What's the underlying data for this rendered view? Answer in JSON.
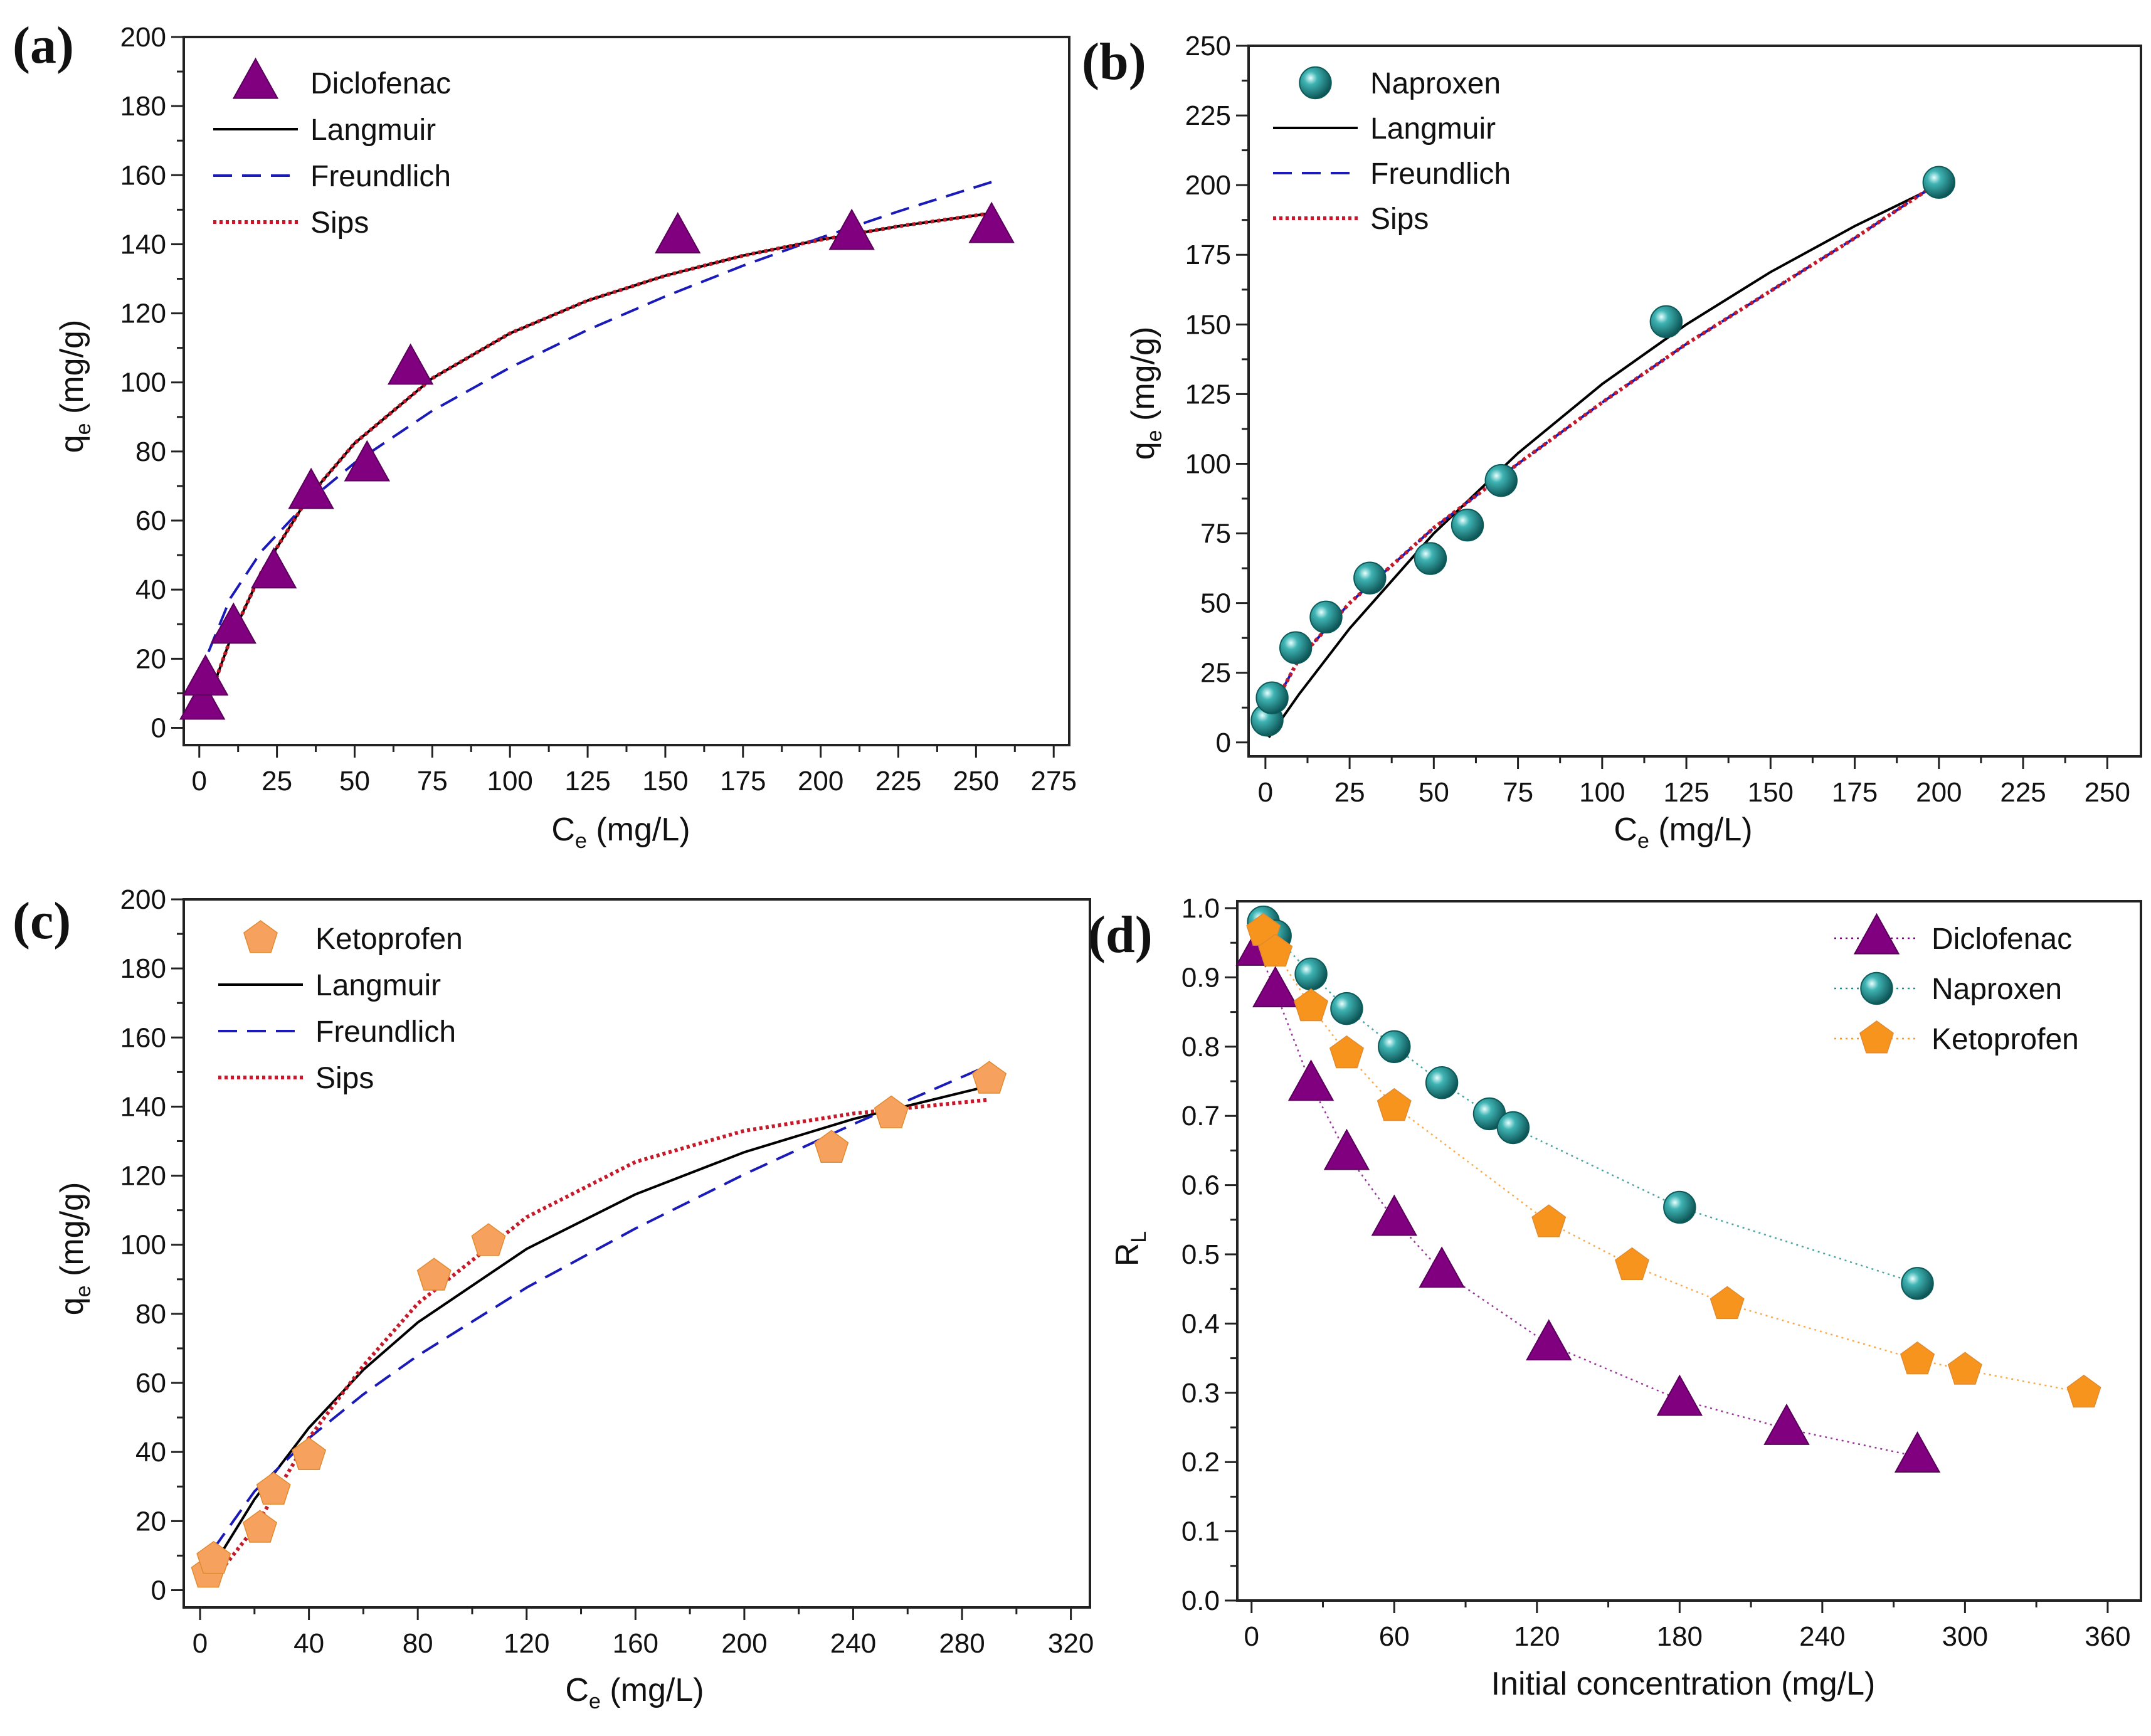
{
  "colors": {
    "diclofenac": "#800080",
    "naproxen": "#1a8c8c",
    "ketoprofen_c": "#f6a25e",
    "ketoprofen_d": "#f7941d",
    "langmuir": "#000000",
    "freundlich": "#1a1ab8",
    "sips": "#c41a2a"
  },
  "chart_data": [
    {
      "panel": "(a)",
      "type": "scatter",
      "xlabel": {
        "base": "C",
        "sub": "e",
        "unit": " (mg/L)"
      },
      "ylabel": {
        "base": "q",
        "sub": "e",
        "unit": " (mg/g)"
      },
      "xlim": [
        -5,
        280
      ],
      "ylim": [
        -5,
        200
      ],
      "xticks": [
        "0",
        "25",
        "50",
        "75",
        "100",
        "125",
        "150",
        "175",
        "200",
        "225",
        "250",
        "275"
      ],
      "yticks": [
        "0",
        "20",
        "40",
        "60",
        "80",
        "100",
        "120",
        "140",
        "160",
        "180",
        "200"
      ],
      "legend": "top-left",
      "series": [
        {
          "name": "Diclofenac",
          "kind": "points",
          "marker": "triangle",
          "color": "#800080",
          "x": [
            1,
            2,
            11,
            24,
            36,
            54,
            68,
            154,
            210,
            255
          ],
          "y": [
            7,
            14,
            29,
            45,
            68,
            76,
            104,
            142,
            143,
            145
          ]
        },
        {
          "name": "Langmuir",
          "kind": "line",
          "style": "solid",
          "color": "#000000",
          "x": [
            2,
            10,
            20,
            35,
            50,
            75,
            100,
            125,
            150,
            175,
            200,
            225,
            255
          ],
          "y": [
            5.8,
            25.6,
            45,
            66.6,
            82.4,
            101.2,
            114.2,
            123.7,
            130.9,
            136.7,
            141.3,
            145.2,
            149
          ]
        },
        {
          "name": "Freundlich",
          "kind": "line",
          "style": "dashed",
          "color": "#1a1ab8",
          "x": [
            3,
            10,
            20,
            35,
            50,
            75,
            100,
            125,
            150,
            175,
            200,
            225,
            255
          ],
          "y": [
            22,
            37.5,
            51.1,
            65.5,
            76.7,
            91.8,
            104.3,
            115.2,
            124.9,
            133.8,
            141.9,
            149.5,
            158
          ]
        },
        {
          "name": "Sips",
          "kind": "line",
          "style": "dotted",
          "color": "#c41a2a",
          "x": [
            2,
            10,
            20,
            35,
            50,
            75,
            100,
            125,
            150,
            175,
            200,
            225,
            255
          ],
          "y": [
            5.8,
            25.6,
            45,
            66.6,
            82.4,
            101.2,
            114.2,
            123.7,
            130.9,
            136.7,
            141.3,
            145.2,
            149
          ]
        }
      ]
    },
    {
      "panel": "(b)",
      "type": "scatter",
      "xlabel": {
        "base": "C",
        "sub": "e",
        "unit": " (mg/L)"
      },
      "ylabel": {
        "base": "q",
        "sub": "e",
        "unit": " (mg/g)"
      },
      "xlim": [
        -5,
        260
      ],
      "ylim": [
        -5,
        250
      ],
      "xticks": [
        "0",
        "25",
        "50",
        "75",
        "100",
        "125",
        "150",
        "175",
        "200",
        "225",
        "250"
      ],
      "yticks": [
        "0",
        "25",
        "50",
        "75",
        "100",
        "125",
        "150",
        "175",
        "200",
        "225",
        "250"
      ],
      "legend": "top-left",
      "series": [
        {
          "name": "Naproxen",
          "kind": "points",
          "marker": "sphere",
          "color": "#1a8c8c",
          "x": [
            0.5,
            2,
            9,
            18,
            31,
            49,
            60,
            70,
            119,
            200
          ],
          "y": [
            8,
            16,
            34,
            45,
            59,
            66,
            78,
            94,
            151,
            201
          ]
        },
        {
          "name": "Langmuir",
          "kind": "line",
          "style": "solid",
          "color": "#000000",
          "x": [
            1,
            10,
            25,
            50,
            75,
            100,
            125,
            150,
            175,
            200
          ],
          "y": [
            1.8,
            17.3,
            40.9,
            75,
            103.8,
            128.6,
            150,
            168.8,
            185.3,
            200
          ]
        },
        {
          "name": "Freundlich",
          "kind": "line",
          "style": "dashed",
          "color": "#1a1ab8",
          "x": [
            1,
            10,
            25,
            50,
            75,
            100,
            125,
            150,
            175,
            200
          ],
          "y": [
            10,
            30,
            50,
            77,
            100,
            122,
            143,
            162,
            181,
            201
          ]
        },
        {
          "name": "Sips",
          "kind": "line",
          "style": "dotted",
          "color": "#c41a2a",
          "x": [
            1,
            10,
            25,
            50,
            75,
            100,
            125,
            150,
            175,
            200
          ],
          "y": [
            10,
            30,
            50,
            77,
            100,
            122,
            143,
            162,
            181,
            201
          ]
        }
      ]
    },
    {
      "panel": "(c)",
      "type": "scatter",
      "xlabel": {
        "base": "C",
        "sub": "e",
        "unit": " (mg/L)"
      },
      "ylabel": {
        "base": "q",
        "sub": "e",
        "unit": " (mg/g)"
      },
      "xlim": [
        -6,
        327
      ],
      "ylim": [
        -5,
        200
      ],
      "xticks": [
        "0",
        "40",
        "80",
        "120",
        "160",
        "200",
        "240",
        "280",
        "320"
      ],
      "yticks": [
        "0",
        "20",
        "40",
        "60",
        "80",
        "100",
        "120",
        "140",
        "160",
        "180",
        "200"
      ],
      "legend": "top-left",
      "series": [
        {
          "name": "Ketoprofen",
          "kind": "points",
          "marker": "pentagon",
          "color": "#f6a25e",
          "x": [
            3,
            5,
            22,
            27,
            40,
            86,
            106,
            232,
            254,
            290
          ],
          "y": [
            5,
            9,
            18,
            29,
            39,
            91,
            101,
            128,
            138,
            148
          ]
        },
        {
          "name": "Langmuir",
          "kind": "line",
          "style": "solid",
          "color": "#000000",
          "x": [
            5,
            20,
            40,
            60,
            80,
            120,
            160,
            200,
            240,
            290
          ],
          "y": [
            7.2,
            26.3,
            47,
            63.8,
            77.5,
            98.8,
            114.6,
            126.8,
            136.4,
            146
          ]
        },
        {
          "name": "Freundlich",
          "kind": "line",
          "style": "dashed",
          "color": "#1a1ab8",
          "x": [
            5,
            20,
            40,
            60,
            80,
            120,
            160,
            200,
            240,
            290
          ],
          "y": [
            12,
            28.6,
            44,
            56.7,
            67.9,
            87.6,
            104.7,
            120.4,
            134.9,
            152
          ]
        },
        {
          "name": "Sips",
          "kind": "line",
          "style": "dotted",
          "color": "#c41a2a",
          "x": [
            5,
            20,
            40,
            60,
            80,
            120,
            160,
            200,
            240,
            290
          ],
          "y": [
            3,
            18,
            44,
            65,
            83,
            108,
            124,
            133,
            138,
            142
          ]
        }
      ]
    },
    {
      "panel": "(d)",
      "type": "scatter",
      "xlabel": {
        "base": "Initial concentration (mg/L)",
        "sub": "",
        "unit": ""
      },
      "ylabel": {
        "base": "R",
        "sub": "L",
        "unit": ""
      },
      "xlim": [
        -6,
        374
      ],
      "ylim": [
        0,
        1.01
      ],
      "xticks": [
        "0",
        "60",
        "120",
        "180",
        "240",
        "300",
        "360"
      ],
      "yticks": [
        "0.0",
        "0.1",
        "0.2",
        "0.3",
        "0.4",
        "0.5",
        "0.6",
        "0.7",
        "0.8",
        "0.9",
        "1.0"
      ],
      "legend": "top-right",
      "series": [
        {
          "name": "Diclofenac",
          "kind": "points+line",
          "marker": "triangle",
          "style": "dotted",
          "color": "#800080",
          "x": [
            3,
            10,
            25,
            40,
            60,
            80,
            125,
            180,
            225,
            280
          ],
          "y": [
            0.94,
            0.88,
            0.745,
            0.645,
            0.55,
            0.475,
            0.37,
            0.29,
            0.248,
            0.208
          ]
        },
        {
          "name": "Naproxen",
          "kind": "points+line",
          "marker": "sphere",
          "style": "dotted",
          "color": "#1a8c8c",
          "x": [
            5,
            10,
            25,
            40,
            60,
            80,
            100,
            110,
            180,
            280
          ],
          "y": [
            0.98,
            0.96,
            0.905,
            0.855,
            0.8,
            0.748,
            0.703,
            0.683,
            0.568,
            0.458
          ]
        },
        {
          "name": "Ketoprofen",
          "kind": "points+line",
          "marker": "pentagon",
          "style": "dotted",
          "color": "#f7941d",
          "x": [
            5,
            10,
            25,
            40,
            60,
            125,
            160,
            200,
            280,
            300,
            350
          ],
          "y": [
            0.967,
            0.937,
            0.858,
            0.79,
            0.714,
            0.546,
            0.484,
            0.428,
            0.348,
            0.333,
            0.3
          ]
        }
      ]
    }
  ]
}
